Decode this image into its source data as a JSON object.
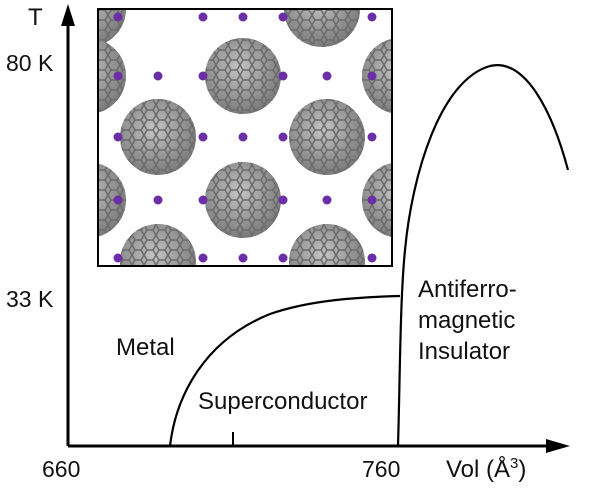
{
  "axes": {
    "y_label": "T",
    "x_label": "Vol (Å",
    "x_label_sup": "3",
    "x_label_close": ")",
    "y_ticks": [
      "80 K",
      "33 K"
    ],
    "x_ticks": [
      "660",
      "760"
    ]
  },
  "regions": {
    "metal": "Metal",
    "superconductor": "Superconductor",
    "afm_line1": "Antiferro-",
    "afm_line2": "magnetic",
    "afm_line3": "Insulator"
  },
  "inset": {
    "content": "fullerene crystal lattice",
    "cage_color": "#8a8a8a",
    "atom_color": "#6a2fa6"
  }
}
